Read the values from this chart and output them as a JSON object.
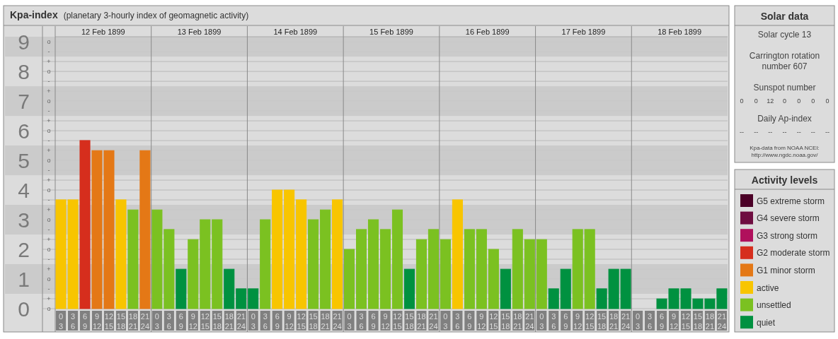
{
  "chart_data": [
    {
      "type": "bar",
      "stacked": true,
      "title": "Kpa-index",
      "subtitle": "(planetary 3-hourly index of geomagnetic activity)",
      "categories": [
        "0\n3",
        "3\n6",
        "6\n9",
        "9\n12",
        "12\n15",
        "15\n18",
        "18\n21",
        "21\n24",
        "0\n3",
        "3\n6",
        "6\n9",
        "9\n12",
        "12\n15",
        "15\n18",
        "18\n21",
        "21\n24",
        "0\n3",
        "3\n6",
        "6\n9",
        "9\n12",
        "12\n15",
        "15\n18",
        "18\n21",
        "21\n24",
        "0\n3",
        "3\n6",
        "6\n9",
        "9\n12",
        "12\n15",
        "15\n18",
        "18\n21",
        "21\n24",
        "0\n3",
        "3\n6",
        "6\n9",
        "9\n12",
        "12\n15",
        "15\n18",
        "18\n21",
        "21\n24",
        "0\n3",
        "3\n6",
        "6\n9",
        "9\n12",
        "12\n15",
        "15\n18",
        "18\n21",
        "21\n24",
        "0\n3",
        "3\n6",
        "6\n9",
        "9\n12",
        "12\n15",
        "15\n18",
        "18\n21",
        "21\n24"
      ],
      "x2lim": [
        "1899-02-12T00:00",
        "1899-02-19T00:00"
      ],
      "x2ticks": [
        {
          "value": "1899-02-12T12:00",
          "label": "12 Feb 1899"
        },
        {
          "value": "1899-02-13T00:00",
          "label": null
        },
        {
          "value": "1899-02-13T12:00",
          "label": "13 Feb 1899"
        },
        {
          "value": "1899-02-14T00:00",
          "label": null
        },
        {
          "value": "1899-02-14T12:00",
          "label": "14 Feb 1899"
        },
        {
          "value": "1899-02-15T00:00",
          "label": null
        },
        {
          "value": "1899-02-15T12:00",
          "label": "15 Feb 1899"
        },
        {
          "value": "1899-02-16T00:00",
          "label": null
        },
        {
          "value": "1899-02-16T12:00",
          "label": "16 Feb 1899"
        },
        {
          "value": "1899-02-17T00:00",
          "label": null
        },
        {
          "value": "1899-02-17T12:00",
          "label": "17 Feb 1899"
        },
        {
          "value": "1899-02-18T00:00",
          "label": null
        },
        {
          "value": "1899-02-18T12:00",
          "label": "18 Feb 1899"
        }
      ],
      "ylim": [
        0,
        9.17
      ],
      "yticks": [
        0,
        1,
        2,
        3,
        4,
        5,
        6,
        7,
        8,
        9
      ],
      "annotations": [
        "o",
        "+",
        "-",
        "o",
        "+",
        "-",
        "o",
        "+",
        "-",
        "o",
        "+",
        "-",
        "o",
        "+",
        "-",
        "o",
        "+",
        "-",
        "o",
        "+",
        "-",
        "o",
        "+",
        "-",
        "o",
        "+",
        "-",
        "o"
      ],
      "bands": [
        {
          "axis": "y",
          "from": 0.5,
          "to": 1.5,
          "color": "#c9c9c9"
        },
        {
          "axis": "y",
          "from": 2.5,
          "to": 3.5,
          "color": "#c9c9c9"
        },
        {
          "axis": "y",
          "from": 4.5,
          "to": 5.5,
          "color": "#c9c9c9"
        },
        {
          "axis": "y",
          "from": 6.5,
          "to": 7.5,
          "color": "#c9c9c9"
        },
        {
          "axis": "y",
          "from": 8.5,
          "to": 9.17,
          "color": "#c9c9c9"
        }
      ],
      "grid": true,
      "legend": "right",
      "legend_title": "Activity levels",
      "series": [
        {
          "name": "G5 extreme storm",
          "color": "#4b0026",
          "values": [
            null,
            null,
            null,
            null,
            null,
            null,
            null,
            null,
            null,
            null,
            null,
            null,
            null,
            null,
            null,
            null,
            null,
            null,
            null,
            null,
            null,
            null,
            null,
            null,
            null,
            null,
            null,
            null,
            null,
            null,
            null,
            null,
            null,
            null,
            null,
            null,
            null,
            null,
            null,
            null,
            null,
            null,
            null,
            null,
            null,
            null,
            null,
            null,
            null,
            null,
            null,
            null,
            null,
            null,
            null,
            null
          ]
        },
        {
          "name": "G4 severe storm",
          "color": "#6e0d40",
          "values": [
            null,
            null,
            null,
            null,
            null,
            null,
            null,
            null,
            null,
            null,
            null,
            null,
            null,
            null,
            null,
            null,
            null,
            null,
            null,
            null,
            null,
            null,
            null,
            null,
            null,
            null,
            null,
            null,
            null,
            null,
            null,
            null,
            null,
            null,
            null,
            null,
            null,
            null,
            null,
            null,
            null,
            null,
            null,
            null,
            null,
            null,
            null,
            null,
            null,
            null,
            null,
            null,
            null,
            null,
            null,
            null
          ]
        },
        {
          "name": "G3 strong storm",
          "color": "#b0105c",
          "values": [
            null,
            null,
            null,
            null,
            null,
            null,
            null,
            null,
            null,
            null,
            null,
            null,
            null,
            null,
            null,
            null,
            null,
            null,
            null,
            null,
            null,
            null,
            null,
            null,
            null,
            null,
            null,
            null,
            null,
            null,
            null,
            null,
            null,
            null,
            null,
            null,
            null,
            null,
            null,
            null,
            null,
            null,
            null,
            null,
            null,
            null,
            null,
            null,
            null,
            null,
            null,
            null,
            null,
            null,
            null,
            null
          ]
        },
        {
          "name": "G2 moderate storm",
          "color": "#d62e1d",
          "values": [
            null,
            null,
            5.67,
            null,
            null,
            null,
            null,
            null,
            null,
            null,
            null,
            null,
            null,
            null,
            null,
            null,
            null,
            null,
            null,
            null,
            null,
            null,
            null,
            null,
            null,
            null,
            null,
            null,
            null,
            null,
            null,
            null,
            null,
            null,
            null,
            null,
            null,
            null,
            null,
            null,
            null,
            null,
            null,
            null,
            null,
            null,
            null,
            null,
            null,
            null,
            null,
            null,
            null,
            null,
            null,
            null
          ]
        },
        {
          "name": "G1 minor storm",
          "color": "#e47816",
          "values": [
            null,
            null,
            null,
            5.33,
            5.33,
            null,
            null,
            5.33,
            null,
            null,
            null,
            null,
            null,
            null,
            null,
            null,
            null,
            null,
            null,
            null,
            null,
            null,
            null,
            null,
            null,
            null,
            null,
            null,
            null,
            null,
            null,
            null,
            null,
            null,
            null,
            null,
            null,
            null,
            null,
            null,
            null,
            null,
            null,
            null,
            null,
            null,
            null,
            null,
            null,
            null,
            null,
            null,
            null,
            null,
            null,
            null
          ]
        },
        {
          "name": "active",
          "color": "#f8c500",
          "values": [
            3.67,
            3.67,
            null,
            null,
            null,
            3.67,
            null,
            null,
            null,
            null,
            null,
            null,
            null,
            null,
            null,
            null,
            null,
            null,
            4,
            4,
            3.67,
            null,
            null,
            3.67,
            null,
            null,
            null,
            null,
            null,
            null,
            null,
            null,
            null,
            3.67,
            null,
            null,
            null,
            null,
            null,
            null,
            null,
            null,
            null,
            null,
            null,
            null,
            null,
            null,
            null,
            null,
            null,
            null,
            null,
            null,
            null,
            null
          ]
        },
        {
          "name": "unsettled",
          "color": "#7bc121",
          "values": [
            null,
            null,
            null,
            null,
            null,
            null,
            3.33,
            null,
            3.33,
            2.67,
            null,
            2.33,
            3,
            3,
            null,
            null,
            null,
            3,
            null,
            null,
            null,
            3,
            3.33,
            null,
            2,
            2.67,
            3,
            2.67,
            3.33,
            null,
            2.33,
            2.67,
            2.33,
            null,
            2.67,
            2.67,
            2,
            null,
            2.67,
            2.33,
            2.33,
            null,
            null,
            2.67,
            2.67,
            null,
            null,
            null,
            null,
            null,
            null,
            null,
            null,
            null,
            null,
            null
          ]
        },
        {
          "name": "quiet",
          "color": "#009140",
          "values": [
            null,
            null,
            null,
            null,
            null,
            null,
            null,
            null,
            null,
            null,
            1.33,
            null,
            null,
            null,
            1.33,
            0.67,
            0.67,
            null,
            null,
            null,
            null,
            null,
            null,
            null,
            null,
            null,
            null,
            null,
            null,
            1.33,
            null,
            null,
            null,
            null,
            null,
            null,
            null,
            1.33,
            null,
            null,
            null,
            0.67,
            1.33,
            null,
            null,
            0.67,
            1.33,
            1.33,
            0,
            0,
            0.33,
            0.67,
            0.67,
            0.33,
            0.33,
            0.67
          ]
        }
      ]
    },
    {
      "type": "other",
      "title": "Solar data",
      "annotations": [
        "Solar cycle 13",
        "Carrington rotation number 607",
        "Sunspot number",
        "0 0 12 0 0 0 0",
        "Daily Ap-index",
        "-- -- -- -- -- -- --",
        "Kpa-data from NOAA NCEI: http://www.ngdc.noaa.gov/"
      ]
    }
  ]
}
